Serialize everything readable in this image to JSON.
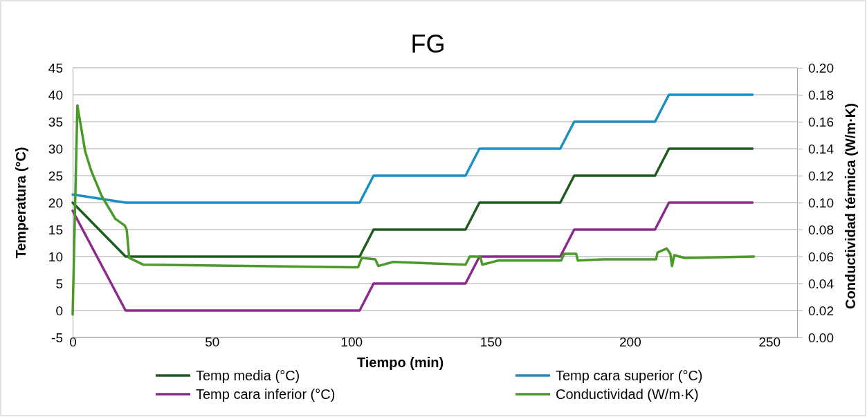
{
  "chart_data": {
    "type": "line",
    "title": "FG",
    "xlabel": "Tiempo (min)",
    "ylabel": "Temperatura (°C)",
    "y2label": "Conductividad térmica (W/m·K)",
    "xlim": [
      0,
      260
    ],
    "xticks": [
      0,
      50,
      100,
      150,
      200,
      250
    ],
    "ylim": [
      -5,
      45
    ],
    "yticks": [
      -5,
      0,
      5,
      10,
      15,
      20,
      25,
      30,
      35,
      40,
      45
    ],
    "y2lim": [
      0,
      0.2
    ],
    "y2ticks": [
      {
        "value": 0,
        "label": "0.00"
      },
      {
        "value": 0.02,
        "label": "0.02"
      },
      {
        "value": 0.04,
        "label": "0.04"
      },
      {
        "value": 0.06,
        "label": "0.06"
      },
      {
        "value": 0.08,
        "label": "0.08"
      },
      {
        "value": 0.1,
        "label": "0.10"
      },
      {
        "value": 0.12,
        "label": "0.12"
      },
      {
        "value": 0.14,
        "label": "0.14"
      },
      {
        "value": 0.16,
        "label": "0.16"
      },
      {
        "value": 0.18,
        "label": "0.18"
      },
      {
        "value": 0.2,
        "label": "0.20"
      }
    ],
    "grid": "y",
    "legend": "bottom",
    "marker": "none",
    "line_style": "solid",
    "series": [
      {
        "name": "Temp media (°C)",
        "color": "#1e5c1e",
        "x": [
          0,
          19,
          103,
          108,
          141,
          146,
          175,
          180,
          209,
          214,
          244
        ],
        "values": [
          20,
          10,
          10,
          15,
          15,
          20,
          20,
          25,
          25,
          30,
          30
        ]
      },
      {
        "name": "Temp cara superior (°C)",
        "color": "#1a8fc4",
        "x": [
          0,
          19,
          103,
          108,
          141,
          146,
          175,
          180,
          209,
          214,
          244
        ],
        "values": [
          21.5,
          20,
          20,
          25,
          25,
          30,
          30,
          35,
          35,
          40,
          40
        ]
      },
      {
        "name": "Temp cara inferior (°C)",
        "color": "#8b2a8b",
        "x": [
          0,
          19,
          103,
          108,
          141,
          146,
          175,
          180,
          209,
          214,
          244
        ],
        "values": [
          18.5,
          0,
          0,
          5,
          5,
          10,
          10,
          15,
          15,
          20,
          20
        ]
      },
      {
        "name": "Conductividad (W/m·K)",
        "color": "#4a9a2a",
        "axis": "y2",
        "x": [
          0,
          1.7,
          4.5,
          6.6,
          10.4,
          15.3,
          18.7,
          19.4,
          20.3,
          25.3,
          102.4,
          103.8,
          108.6,
          109.7,
          115,
          141,
          142.5,
          146.3,
          147,
          152.6,
          175.3,
          176.4,
          180.7,
          181.3,
          190.5,
          209.4,
          209.9,
          213.2,
          214.5,
          215.1,
          215.9,
          219.7,
          244.5
        ],
        "values": [
          0.017,
          0.172,
          0.138,
          0.124,
          0.105,
          0.088,
          0.083,
          0.08,
          0.059,
          0.054,
          0.052,
          0.059,
          0.058,
          0.053,
          0.056,
          0.054,
          0.06,
          0.06,
          0.054,
          0.057,
          0.057,
          0.062,
          0.062,
          0.057,
          0.058,
          0.058,
          0.063,
          0.066,
          0.062,
          0.053,
          0.061,
          0.059,
          0.06
        ]
      }
    ]
  }
}
